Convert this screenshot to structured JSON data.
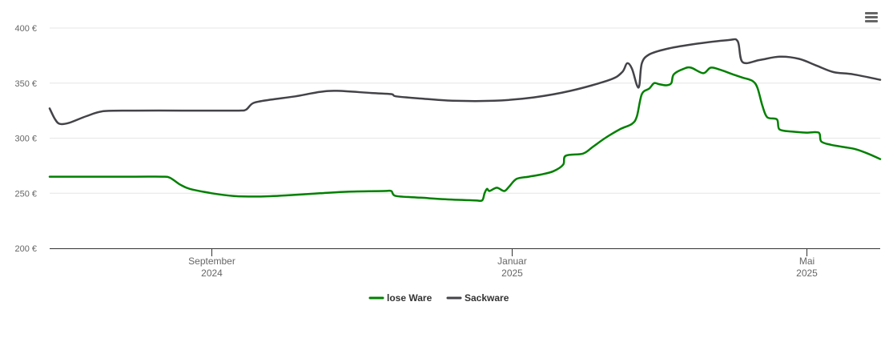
{
  "menu": {
    "icon": "hamburger-menu-icon"
  },
  "chart_data": {
    "type": "line",
    "title": "",
    "xlabel": "",
    "ylabel": "",
    "ylim": [
      200,
      400
    ],
    "yticks": [
      {
        "value": 200,
        "label": "200 €"
      },
      {
        "value": 250,
        "label": "250 €"
      },
      {
        "value": 300,
        "label": "300 €"
      },
      {
        "value": 350,
        "label": "350 €"
      },
      {
        "value": 400,
        "label": "400 €"
      }
    ],
    "xlim": [
      "2024-06-27",
      "2025-05-31"
    ],
    "xticks": [
      {
        "date": "2024-09-01",
        "label": "September",
        "sub": "2024"
      },
      {
        "date": "2025-01-01",
        "label": "Januar",
        "sub": "2025"
      },
      {
        "date": "2025-05-01",
        "label": "Mai",
        "sub": "2025"
      }
    ],
    "grid": true,
    "legend_position": "bottom-center",
    "series": [
      {
        "name": "lose Ware",
        "color": "#008000",
        "points": [
          [
            "2024-06-27",
            265
          ],
          [
            "2024-07-12",
            265
          ],
          [
            "2024-08-01",
            265
          ],
          [
            "2024-08-12",
            265
          ],
          [
            "2024-08-15",
            264
          ],
          [
            "2024-08-19",
            258
          ],
          [
            "2024-08-23",
            254
          ],
          [
            "2024-09-01",
            250
          ],
          [
            "2024-09-10",
            247.5
          ],
          [
            "2024-09-20",
            247
          ],
          [
            "2024-10-01",
            248
          ],
          [
            "2024-10-15",
            250
          ],
          [
            "2024-10-27",
            251.5
          ],
          [
            "2024-11-10",
            252
          ],
          [
            "2024-11-13",
            252
          ],
          [
            "2024-11-15",
            247.5
          ],
          [
            "2024-11-25",
            246
          ],
          [
            "2024-12-05",
            244.5
          ],
          [
            "2024-12-17",
            243.5
          ],
          [
            "2024-12-20",
            243.5
          ],
          [
            "2024-12-21",
            250
          ],
          [
            "2024-12-22",
            254
          ],
          [
            "2024-12-23",
            252
          ],
          [
            "2024-12-26",
            255
          ],
          [
            "2024-12-29",
            252
          ],
          [
            "2024-12-31",
            256
          ],
          [
            "2025-01-03",
            263
          ],
          [
            "2025-01-08",
            265
          ],
          [
            "2025-01-13",
            267
          ],
          [
            "2025-01-18",
            270
          ],
          [
            "2025-01-22",
            276
          ],
          [
            "2025-01-23",
            284
          ],
          [
            "2025-01-30",
            286
          ],
          [
            "2025-02-03",
            292
          ],
          [
            "2025-02-08",
            300
          ],
          [
            "2025-02-14",
            308
          ],
          [
            "2025-02-19",
            313
          ],
          [
            "2025-02-21",
            320
          ],
          [
            "2025-02-23",
            340
          ],
          [
            "2025-02-26",
            345
          ],
          [
            "2025-02-28",
            350
          ],
          [
            "2025-03-02",
            349
          ],
          [
            "2025-03-05",
            348
          ],
          [
            "2025-03-07",
            350
          ],
          [
            "2025-03-08",
            358
          ],
          [
            "2025-03-12",
            363
          ],
          [
            "2025-03-15",
            364
          ],
          [
            "2025-03-20",
            359
          ],
          [
            "2025-03-23",
            364
          ],
          [
            "2025-03-27",
            362
          ],
          [
            "2025-04-01",
            358
          ],
          [
            "2025-04-05",
            355
          ],
          [
            "2025-04-09",
            352
          ],
          [
            "2025-04-11",
            346
          ],
          [
            "2025-04-13",
            330
          ],
          [
            "2025-04-15",
            319
          ],
          [
            "2025-04-19",
            317
          ],
          [
            "2025-04-20",
            308
          ],
          [
            "2025-04-25",
            306
          ],
          [
            "2025-05-01",
            305
          ],
          [
            "2025-05-06",
            305
          ],
          [
            "2025-05-07",
            297
          ],
          [
            "2025-05-11",
            294
          ],
          [
            "2025-05-16",
            292
          ],
          [
            "2025-05-21",
            290
          ],
          [
            "2025-05-26",
            286
          ],
          [
            "2025-05-31",
            281
          ]
        ]
      },
      {
        "name": "Sackware",
        "color": "#434348",
        "points": [
          [
            "2024-06-27",
            327
          ],
          [
            "2024-06-29",
            318
          ],
          [
            "2024-07-01",
            313
          ],
          [
            "2024-07-05",
            314
          ],
          [
            "2024-07-12",
            320
          ],
          [
            "2024-07-19",
            324.5
          ],
          [
            "2024-08-01",
            325
          ],
          [
            "2024-08-20",
            325
          ],
          [
            "2024-09-01",
            325
          ],
          [
            "2024-09-12",
            325
          ],
          [
            "2024-09-15",
            326
          ],
          [
            "2024-09-18",
            332
          ],
          [
            "2024-09-25",
            335
          ],
          [
            "2024-10-05",
            338
          ],
          [
            "2024-10-15",
            342
          ],
          [
            "2024-10-22",
            343
          ],
          [
            "2024-11-05",
            341
          ],
          [
            "2024-11-13",
            340
          ],
          [
            "2024-11-15",
            338
          ],
          [
            "2024-11-25",
            336
          ],
          [
            "2024-12-08",
            334
          ],
          [
            "2024-12-25",
            334
          ],
          [
            "2025-01-10",
            337
          ],
          [
            "2025-01-25",
            343
          ],
          [
            "2025-02-10",
            353
          ],
          [
            "2025-02-15",
            360
          ],
          [
            "2025-02-17",
            368
          ],
          [
            "2025-02-19",
            363
          ],
          [
            "2025-02-21",
            348
          ],
          [
            "2025-02-22",
            348
          ],
          [
            "2025-02-23",
            368
          ],
          [
            "2025-02-26",
            376
          ],
          [
            "2025-03-05",
            381
          ],
          [
            "2025-03-15",
            385
          ],
          [
            "2025-03-30",
            389
          ],
          [
            "2025-04-03",
            388
          ],
          [
            "2025-04-05",
            369
          ],
          [
            "2025-04-12",
            371
          ],
          [
            "2025-04-20",
            374
          ],
          [
            "2025-04-28",
            372
          ],
          [
            "2025-05-05",
            366
          ],
          [
            "2025-05-12",
            360
          ],
          [
            "2025-05-20",
            358
          ],
          [
            "2025-05-31",
            353
          ]
        ]
      }
    ]
  }
}
